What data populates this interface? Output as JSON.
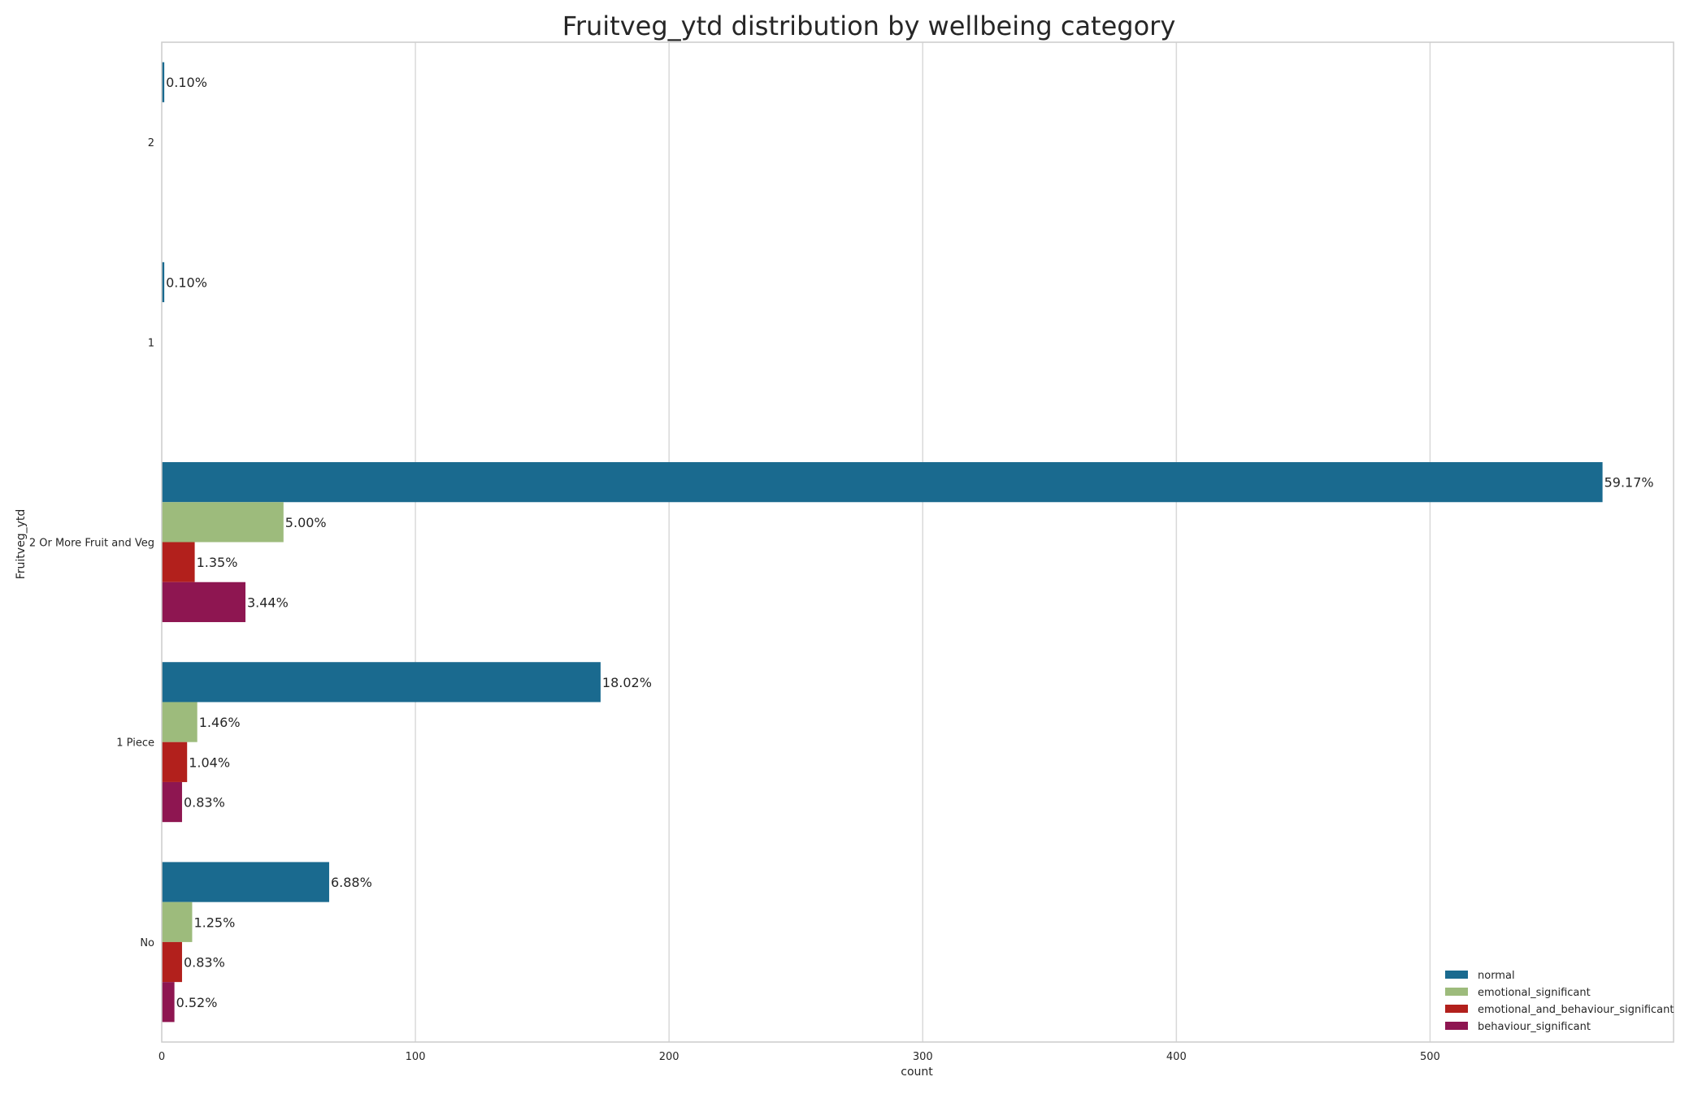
{
  "chart_data": {
    "type": "bar",
    "orientation": "horizontal",
    "title": "Fruitveg_ytd distribution by wellbeing category",
    "xlabel": "count",
    "ylabel": "Fruitveg_ytd",
    "categories": [
      "2",
      "1",
      "2 Or More Fruit and Veg",
      "1 Piece",
      "No"
    ],
    "xlim": [
      0,
      596
    ],
    "xticks": [
      0,
      100,
      200,
      300,
      400,
      500
    ],
    "grid": true,
    "legend_position": "bottom-right",
    "series": [
      {
        "name": "normal",
        "color": "#1a6a8f",
        "values": [
          1,
          1,
          568,
          173,
          66
        ],
        "labels": [
          "0.10%",
          "0.10%",
          "59.17%",
          "18.02%",
          "6.88%"
        ]
      },
      {
        "name": "emotional_significant",
        "color": "#9dbb7c",
        "values": [
          0,
          0,
          48,
          14,
          12
        ],
        "labels": [
          "",
          "",
          "5.00%",
          "1.46%",
          "1.25%"
        ]
      },
      {
        "name": "emotional_and_behaviour_significant",
        "color": "#b2201c",
        "values": [
          0,
          0,
          13,
          10,
          8
        ],
        "labels": [
          "",
          "",
          "1.35%",
          "1.04%",
          "0.83%"
        ]
      },
      {
        "name": "behaviour_significant",
        "color": "#8e1651",
        "values": [
          0,
          0,
          33,
          8,
          5
        ],
        "labels": [
          "",
          "",
          "3.44%",
          "0.83%",
          "0.52%"
        ]
      }
    ]
  }
}
